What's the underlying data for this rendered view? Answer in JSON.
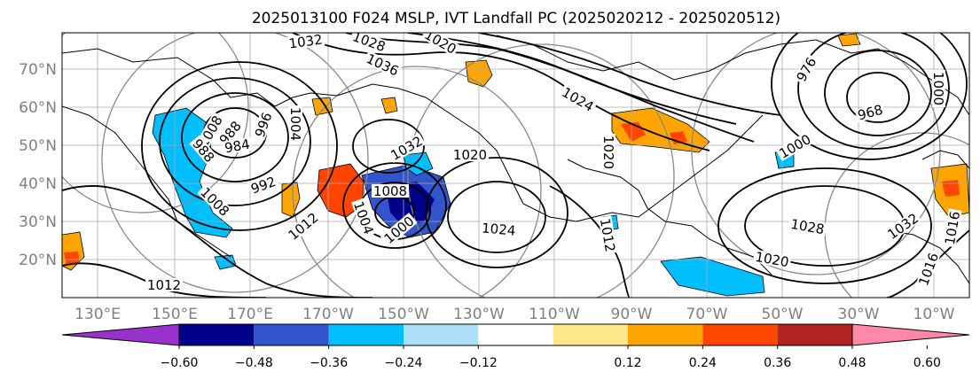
{
  "title": "2025013100 F024 MSLP, IVT Landfall PC (2025020212 - 2025020512)",
  "map": {
    "lat_ticks": [
      "70°N",
      "60°N",
      "50°N",
      "40°N",
      "30°N",
      "20°N"
    ],
    "lon_ticks": [
      "130°E",
      "150°E",
      "170°E",
      "170°W",
      "150°W",
      "130°W",
      "110°W",
      "90°W",
      "70°W",
      "50°W",
      "30°W",
      "10°W"
    ],
    "isobar_labels": [
      "1032",
      "1028",
      "1036",
      "1020",
      "1032",
      "1008",
      "988",
      "984",
      "996",
      "1004",
      "1012",
      "1008",
      "992",
      "1008",
      "1004",
      "1000",
      "1024",
      "1020",
      "1012",
      "1024",
      "1020",
      "1028",
      "1032",
      "1016",
      "1020",
      "1000",
      "976",
      "968",
      "1000",
      "1016",
      "1012",
      "988"
    ],
    "colors": {
      "negative": [
        "#9932CC",
        "#00008B",
        "#3355CC",
        "#00BFFF",
        "#ADE0F8"
      ],
      "neutral": "#ffffff",
      "positive": [
        "#FFE88A",
        "#FFA500",
        "#FF4500",
        "#B22222",
        "#FF88AA"
      ]
    }
  },
  "colorbar": {
    "ticks": [
      "−0.60",
      "−0.48",
      "−0.36",
      "−0.24",
      "−0.12",
      "0.12",
      "0.24",
      "0.36",
      "0.48",
      "0.60"
    ],
    "colors": [
      "#9932CC",
      "#00008B",
      "#3355CC",
      "#00BFFF",
      "#ADE0F8",
      "#ffffff",
      "#FFE88A",
      "#FFA500",
      "#FF4500",
      "#B22222",
      "#FF88AA"
    ]
  }
}
